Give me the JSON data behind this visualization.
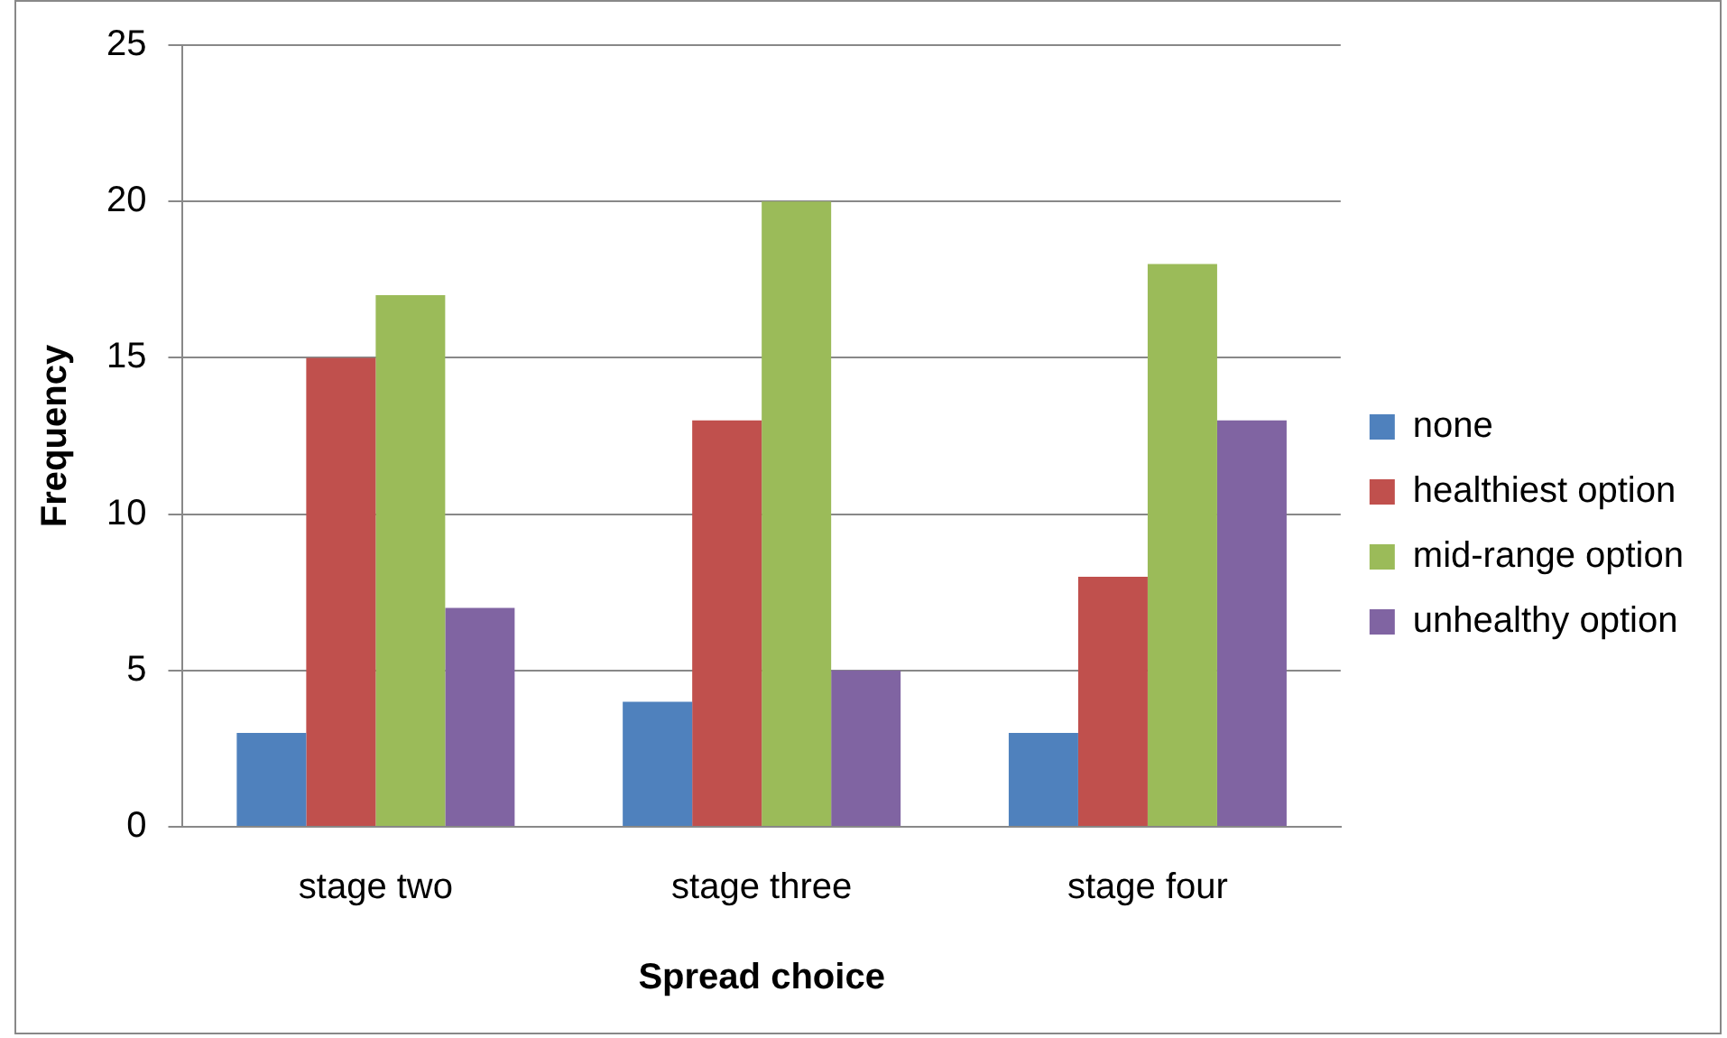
{
  "chart_data": {
    "type": "bar",
    "xlabel": "Spread choice",
    "ylabel": "Frequency",
    "categories": [
      "stage two",
      "stage three",
      "stage four"
    ],
    "series": [
      {
        "name": "none",
        "color": "#4f81bd",
        "values": [
          3,
          4,
          3
        ]
      },
      {
        "name": "healthiest option",
        "color": "#c0504d",
        "values": [
          15,
          13,
          8
        ]
      },
      {
        "name": "mid-range option",
        "color": "#9bbb59",
        "values": [
          17,
          20,
          18
        ]
      },
      {
        "name": "unhealthy option",
        "color": "#8064a2",
        "values": [
          7,
          5,
          13
        ]
      }
    ],
    "ylim": [
      0,
      25
    ],
    "yticks": [
      0,
      5,
      10,
      15,
      20,
      25
    ],
    "grid": "y",
    "legend": "right"
  }
}
